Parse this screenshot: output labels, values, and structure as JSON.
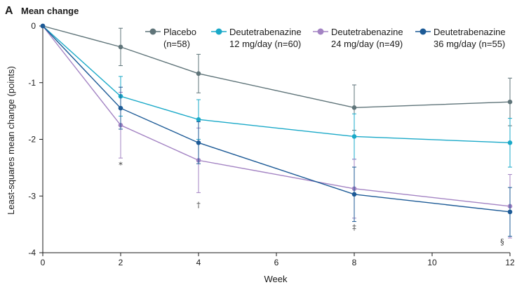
{
  "panel": {
    "letter": "A",
    "title": "Mean change"
  },
  "chart_data": {
    "type": "line",
    "title": "Mean change",
    "xlabel": "Week",
    "ylabel": "Least-squares mean change (points)",
    "xlim": [
      0,
      12
    ],
    "ylim": [
      -4,
      0
    ],
    "x_ticks": [
      "0",
      "2",
      "4",
      "6",
      "8",
      "10",
      "12"
    ],
    "y_ticks": [
      "0",
      "-1",
      "-2",
      "-3",
      "-4"
    ],
    "grid": false,
    "legend_position": "top",
    "series": [
      {
        "name": "Placebo (n=58)",
        "label_lines": [
          "Placebo",
          "(n=58)"
        ],
        "color": "#5f7479",
        "x": [
          0,
          2,
          4,
          8,
          12
        ],
        "y": [
          0,
          -0.37,
          -0.84,
          -1.44,
          -1.34
        ],
        "err": [
          0,
          0.33,
          0.34,
          0.4,
          0.42
        ]
      },
      {
        "name": "Deutetrabenazine 12 mg/day (n=60)",
        "label_lines": [
          "Deutetrabenazine",
          "12 mg/day (n=60)"
        ],
        "color": "#1aa9c8",
        "x": [
          0,
          2,
          4,
          8,
          12
        ],
        "y": [
          0,
          -1.24,
          -1.65,
          -1.95,
          -2.06
        ],
        "err": [
          0,
          0.35,
          0.35,
          0.4,
          0.43
        ]
      },
      {
        "name": "Deutetrabenazine 24 mg/day (n=49)",
        "label_lines": [
          "Deutetrabenazine",
          "24 mg/day (n=49)"
        ],
        "color": "#a383c3",
        "x": [
          0,
          2,
          4,
          8,
          12
        ],
        "y": [
          0,
          -1.75,
          -2.37,
          -2.87,
          -3.18
        ],
        "err": [
          0,
          0.58,
          0.57,
          0.52,
          0.56
        ]
      },
      {
        "name": "Deutetrabenazine 36 mg/day (n=55)",
        "label_lines": [
          "Deutetrabenazine",
          "36 mg/day (n=55)"
        ],
        "color": "#1c5a96",
        "x": [
          0,
          2,
          4,
          8,
          12
        ],
        "y": [
          0,
          -1.45,
          -2.06,
          -2.97,
          -3.28
        ],
        "err": [
          0,
          0.37,
          0.37,
          0.48,
          0.43
        ]
      }
    ],
    "annotations": [
      {
        "text": "*",
        "x": 2,
        "y": -2.5
      },
      {
        "text": "†",
        "x": 4,
        "y": -3.2
      },
      {
        "text": "‡",
        "x": 8,
        "y": -3.6
      },
      {
        "text": "§",
        "x": 11.8,
        "y": -3.85
      }
    ]
  }
}
